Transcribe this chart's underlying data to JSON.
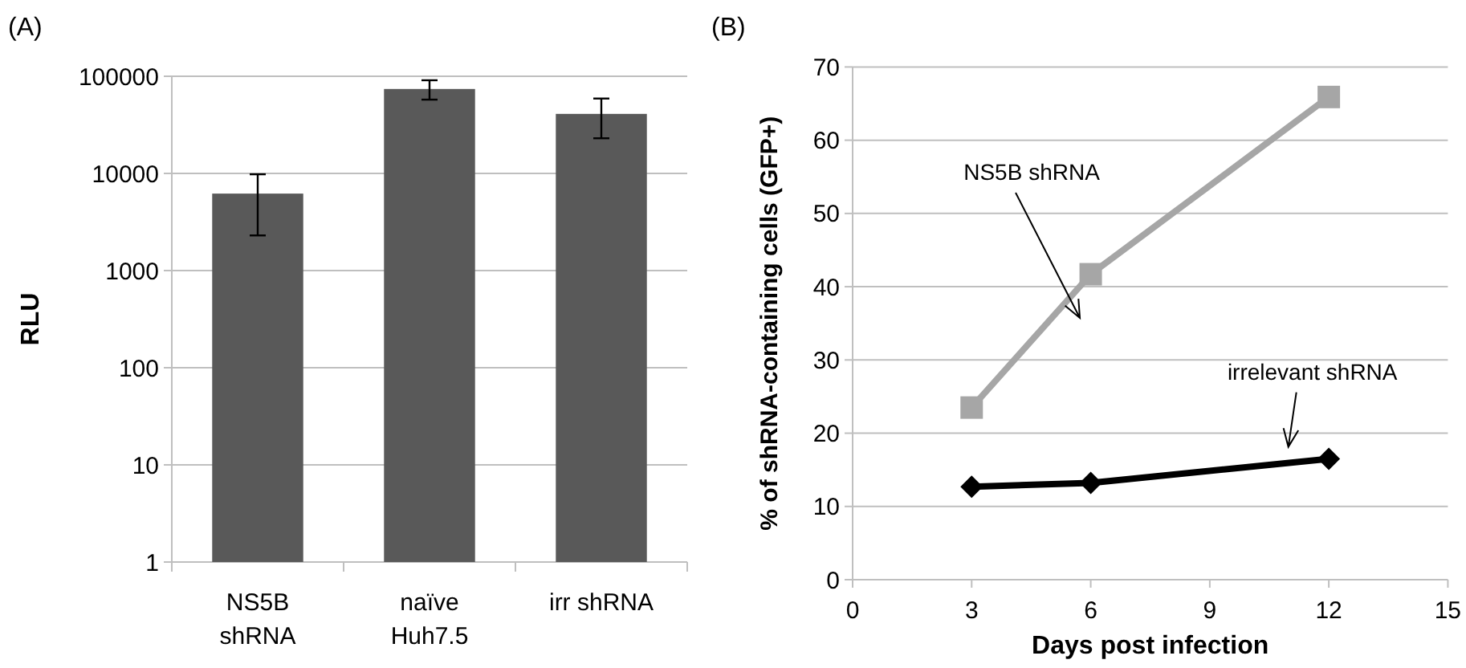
{
  "chart_data": [
    {
      "type": "bar",
      "title": "(A)",
      "ylabel": "RLU",
      "categories": [
        "NS5B shRNA",
        "naïve Huh7.5",
        "irr shRNA"
      ],
      "values": [
        6200,
        74000,
        41000
      ],
      "color": "#595959",
      "errors": [
        [
          2300,
          9800
        ],
        [
          57500,
          91000
        ],
        [
          23000,
          59000
        ]
      ],
      "log": true,
      "ylim": [
        1,
        100000
      ],
      "yticks": [
        1,
        10,
        100,
        1000,
        10000,
        100000
      ],
      "grid": "y"
    },
    {
      "type": "line",
      "title": "(B)",
      "xlabel": "Days post infection",
      "ylabel": "% of shRNA-containing cells (GFP+)",
      "x": [
        3,
        6,
        12
      ],
      "series": [
        {
          "name": "NS5B shRNA",
          "color": "#a6a6a6",
          "marker": "square",
          "values": [
            23.5,
            41.7,
            65.9
          ]
        },
        {
          "name": "irrelevant shRNA",
          "color": "#000000",
          "marker": "diamond",
          "values": [
            12.7,
            13.2,
            16.5
          ]
        }
      ],
      "xlim": [
        0,
        15
      ],
      "xticks": [
        0,
        3,
        6,
        9,
        12,
        15
      ],
      "ylim": [
        0,
        70
      ],
      "yticks": [
        0,
        10,
        20,
        30,
        40,
        50,
        60,
        70
      ],
      "grid": "y"
    }
  ]
}
